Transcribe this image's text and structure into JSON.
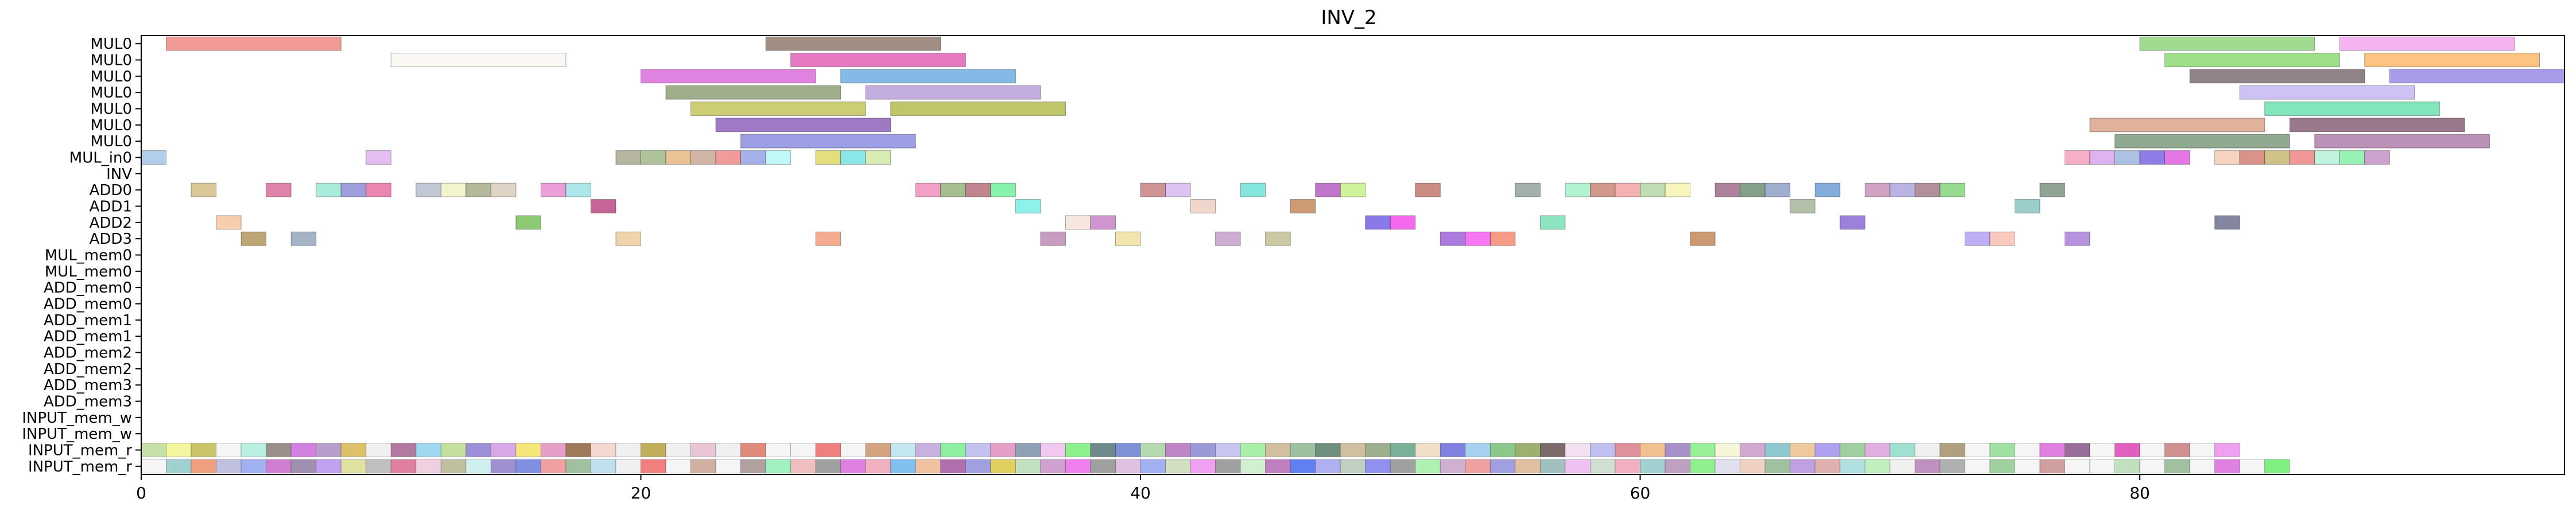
{
  "chart_data": {
    "type": "gantt",
    "title": "INV_2",
    "xlabel": "",
    "ylabel": "",
    "xlim": [
      0,
      97
    ],
    "xticks": [
      0,
      20,
      40,
      60,
      80
    ],
    "grid": false,
    "rows": [
      "MUL0",
      "MUL0",
      "MUL0",
      "MUL0",
      "MUL0",
      "MUL0",
      "MUL0",
      "MUL_in0",
      "INV",
      "ADD0",
      "ADD1",
      "ADD2",
      "ADD3",
      "MUL_mem0",
      "MUL_mem0",
      "ADD_mem0",
      "ADD_mem0",
      "ADD_mem1",
      "ADD_mem1",
      "ADD_mem2",
      "ADD_mem2",
      "ADD_mem3",
      "ADD_mem3",
      "INPUT_mem_w",
      "INPUT_mem_w",
      "INPUT_mem_r",
      "INPUT_mem_r"
    ],
    "tasks": [
      {
        "row": 0,
        "start": 1,
        "end": 8,
        "color": "#f08a84"
      },
      {
        "row": 0,
        "start": 25,
        "end": 32,
        "color": "#917a6c"
      },
      {
        "row": 0,
        "start": 80,
        "end": 87,
        "color": "#8ed67e"
      },
      {
        "row": 0,
        "start": 88,
        "end": 95,
        "color": "#f3a6ee"
      },
      {
        "row": 1,
        "start": 10,
        "end": 17,
        "color": "#faf7f2"
      },
      {
        "row": 1,
        "start": 26,
        "end": 33,
        "color": "#e063b9"
      },
      {
        "row": 1,
        "start": 81,
        "end": 88,
        "color": "#8bd973"
      },
      {
        "row": 1,
        "start": 89,
        "end": 96,
        "color": "#fdb96b"
      },
      {
        "row": 2,
        "start": 20,
        "end": 27,
        "color": "#db6ddb"
      },
      {
        "row": 2,
        "start": 28,
        "end": 35,
        "color": "#6eaee0"
      },
      {
        "row": 2,
        "start": 82,
        "end": 89,
        "color": "#7b6d72"
      },
      {
        "row": 2,
        "start": 90,
        "end": 97,
        "color": "#9a8ae6"
      },
      {
        "row": 3,
        "start": 21,
        "end": 28,
        "color": "#8f9f76"
      },
      {
        "row": 3,
        "start": 29,
        "end": 36,
        "color": "#b99fd9"
      },
      {
        "row": 3,
        "start": 84,
        "end": 91,
        "color": "#c4b7f1"
      },
      {
        "row": 4,
        "start": 22,
        "end": 29,
        "color": "#c4c45c"
      },
      {
        "row": 4,
        "start": 30,
        "end": 37,
        "color": "#b3bc4f"
      },
      {
        "row": 4,
        "start": 85,
        "end": 92,
        "color": "#6ce0b0"
      },
      {
        "row": 5,
        "start": 23,
        "end": 30,
        "color": "#8e62b8"
      },
      {
        "row": 5,
        "start": 78,
        "end": 85,
        "color": "#dba38a"
      },
      {
        "row": 5,
        "start": 86,
        "end": 93,
        "color": "#866075"
      },
      {
        "row": 6,
        "start": 24,
        "end": 31,
        "color": "#8c8ee0"
      },
      {
        "row": 6,
        "start": 79,
        "end": 86,
        "color": "#7d9a7c"
      },
      {
        "row": 6,
        "start": 87,
        "end": 94,
        "color": "#b07fad"
      },
      {
        "row": 7,
        "start": 0,
        "end": 1,
        "color": "#a6c5e8"
      },
      {
        "row": 7,
        "start": 9,
        "end": 10,
        "color": "#dfb3ef"
      },
      {
        "row": 7,
        "start": 19,
        "end": 20,
        "color": "#a9a88f"
      },
      {
        "row": 7,
        "start": 20,
        "end": 21,
        "color": "#a0b986"
      },
      {
        "row": 7,
        "start": 21,
        "end": 22,
        "color": "#e8b884"
      },
      {
        "row": 7,
        "start": 22,
        "end": 23,
        "color": "#c9a896"
      },
      {
        "row": 7,
        "start": 23,
        "end": 24,
        "color": "#f08a8a"
      },
      {
        "row": 7,
        "start": 24,
        "end": 25,
        "color": "#97a3e6"
      },
      {
        "row": 7,
        "start": 25,
        "end": 26,
        "color": "#b7f6f6"
      },
      {
        "row": 7,
        "start": 27,
        "end": 28,
        "color": "#e0d866"
      },
      {
        "row": 7,
        "start": 28,
        "end": 29,
        "color": "#77e2e6"
      },
      {
        "row": 7,
        "start": 29,
        "end": 30,
        "color": "#d1e8a6"
      },
      {
        "row": 7,
        "start": 77,
        "end": 78,
        "color": "#f4a1bd"
      },
      {
        "row": 7,
        "start": 78,
        "end": 79,
        "color": "#d8a6ef"
      },
      {
        "row": 7,
        "start": 79,
        "end": 80,
        "color": "#9fb6e0"
      },
      {
        "row": 7,
        "start": 80,
        "end": 81,
        "color": "#7a66e4"
      },
      {
        "row": 7,
        "start": 81,
        "end": 82,
        "color": "#e15ee0"
      },
      {
        "row": 7,
        "start": 83,
        "end": 84,
        "color": "#f6cdb4"
      },
      {
        "row": 7,
        "start": 84,
        "end": 85,
        "color": "#d47f74"
      },
      {
        "row": 7,
        "start": 85,
        "end": 86,
        "color": "#c8b975"
      },
      {
        "row": 7,
        "start": 86,
        "end": 87,
        "color": "#f08585"
      },
      {
        "row": 7,
        "start": 87,
        "end": 88,
        "color": "#b5f0d8"
      },
      {
        "row": 7,
        "start": 88,
        "end": 89,
        "color": "#86f0a8"
      },
      {
        "row": 7,
        "start": 89,
        "end": 90,
        "color": "#c592c6"
      },
      {
        "row": 9,
        "start": 2,
        "end": 3,
        "color": "#d4bd86"
      },
      {
        "row": 9,
        "start": 5,
        "end": 6,
        "color": "#d86f9b"
      },
      {
        "row": 9,
        "start": 7,
        "end": 8,
        "color": "#9ce8d6"
      },
      {
        "row": 9,
        "start": 8,
        "end": 9,
        "color": "#8d8ed6"
      },
      {
        "row": 9,
        "start": 9,
        "end": 10,
        "color": "#e871a6"
      },
      {
        "row": 9,
        "start": 11,
        "end": 12,
        "color": "#b9bed0"
      },
      {
        "row": 9,
        "start": 12,
        "end": 13,
        "color": "#f0f3c2"
      },
      {
        "row": 9,
        "start": 13,
        "end": 14,
        "color": "#a8ad8b"
      },
      {
        "row": 9,
        "start": 14,
        "end": 15,
        "color": "#d9ccbb"
      },
      {
        "row": 9,
        "start": 16,
        "end": 17,
        "color": "#e88ed2"
      },
      {
        "row": 9,
        "start": 17,
        "end": 18,
        "color": "#9ee3e8"
      },
      {
        "row": 9,
        "start": 31,
        "end": 32,
        "color": "#f08fbe"
      },
      {
        "row": 9,
        "start": 32,
        "end": 33,
        "color": "#95b57a"
      },
      {
        "row": 9,
        "start": 33,
        "end": 34,
        "color": "#b6707c"
      },
      {
        "row": 9,
        "start": 34,
        "end": 35,
        "color": "#72f09c"
      },
      {
        "row": 9,
        "start": 40,
        "end": 41,
        "color": "#c98181"
      },
      {
        "row": 9,
        "start": 41,
        "end": 42,
        "color": "#d7b9f0"
      },
      {
        "row": 9,
        "start": 44,
        "end": 45,
        "color": "#6ee0d6"
      },
      {
        "row": 9,
        "start": 47,
        "end": 48,
        "color": "#b45ec2"
      },
      {
        "row": 9,
        "start": 48,
        "end": 49,
        "color": "#c8f086"
      },
      {
        "row": 9,
        "start": 51,
        "end": 52,
        "color": "#c2786b"
      },
      {
        "row": 9,
        "start": 55,
        "end": 56,
        "color": "#93a39e"
      },
      {
        "row": 9,
        "start": 57,
        "end": 58,
        "color": "#a6f0c8"
      },
      {
        "row": 9,
        "start": 58,
        "end": 59,
        "color": "#c98778"
      },
      {
        "row": 9,
        "start": 59,
        "end": 60,
        "color": "#f3a3a3"
      },
      {
        "row": 9,
        "start": 60,
        "end": 61,
        "color": "#b5d6a6"
      },
      {
        "row": 9,
        "start": 61,
        "end": 62,
        "color": "#f6f2b0"
      },
      {
        "row": 9,
        "start": 63,
        "end": 64,
        "color": "#a06c8c"
      },
      {
        "row": 9,
        "start": 64,
        "end": 65,
        "color": "#6e8f73"
      },
      {
        "row": 9,
        "start": 65,
        "end": 66,
        "color": "#8e9fc6"
      },
      {
        "row": 9,
        "start": 67,
        "end": 68,
        "color": "#6e9fd6"
      },
      {
        "row": 9,
        "start": 69,
        "end": 70,
        "color": "#c592b5"
      },
      {
        "row": 9,
        "start": 70,
        "end": 71,
        "color": "#b0a6e0"
      },
      {
        "row": 9,
        "start": 71,
        "end": 72,
        "color": "#a57b8c"
      },
      {
        "row": 9,
        "start": 72,
        "end": 73,
        "color": "#83d67a"
      },
      {
        "row": 9,
        "start": 76,
        "end": 77,
        "color": "#7b9483"
      },
      {
        "row": 10,
        "start": 18,
        "end": 19,
        "color": "#b84b82"
      },
      {
        "row": 10,
        "start": 35,
        "end": 36,
        "color": "#7af0e6"
      },
      {
        "row": 10,
        "start": 42,
        "end": 43,
        "color": "#ecd0c4"
      },
      {
        "row": 10,
        "start": 46,
        "end": 47,
        "color": "#c48b5e"
      },
      {
        "row": 10,
        "start": 66,
        "end": 67,
        "color": "#a6b69b"
      },
      {
        "row": 10,
        "start": 75,
        "end": 76,
        "color": "#8ac5c2"
      },
      {
        "row": 11,
        "start": 3,
        "end": 4,
        "color": "#f6c6a0"
      },
      {
        "row": 11,
        "start": 15,
        "end": 16,
        "color": "#79c15c"
      },
      {
        "row": 11,
        "start": 37,
        "end": 38,
        "color": "#f4e3d9"
      },
      {
        "row": 11,
        "start": 38,
        "end": 39,
        "color": "#c883c6"
      },
      {
        "row": 11,
        "start": 49,
        "end": 50,
        "color": "#7661e4"
      },
      {
        "row": 11,
        "start": 50,
        "end": 51,
        "color": "#f24ee8"
      },
      {
        "row": 11,
        "start": 56,
        "end": 57,
        "color": "#77e0b5"
      },
      {
        "row": 11,
        "start": 68,
        "end": 69,
        "color": "#8a6ad8"
      },
      {
        "row": 11,
        "start": 83,
        "end": 84,
        "color": "#6e7190"
      },
      {
        "row": 12,
        "start": 4,
        "end": 5,
        "color": "#b0965a"
      },
      {
        "row": 12,
        "start": 6,
        "end": 7,
        "color": "#94a6bb"
      },
      {
        "row": 12,
        "start": 19,
        "end": 20,
        "color": "#edce9b"
      },
      {
        "row": 12,
        "start": 27,
        "end": 28,
        "color": "#f59e7d"
      },
      {
        "row": 12,
        "start": 36,
        "end": 37,
        "color": "#bd8bb5"
      },
      {
        "row": 12,
        "start": 39,
        "end": 40,
        "color": "#f0e0a0"
      },
      {
        "row": 12,
        "start": 43,
        "end": 44,
        "color": "#c49fcc"
      },
      {
        "row": 12,
        "start": 45,
        "end": 46,
        "color": "#c2bf92"
      },
      {
        "row": 12,
        "start": 52,
        "end": 53,
        "color": "#9e62d6"
      },
      {
        "row": 12,
        "start": 53,
        "end": 54,
        "color": "#f45ef2"
      },
      {
        "row": 12,
        "start": 54,
        "end": 55,
        "color": "#f48a70"
      },
      {
        "row": 12,
        "start": 62,
        "end": 63,
        "color": "#c4875a"
      },
      {
        "row": 12,
        "start": 73,
        "end": 74,
        "color": "#b3a0f2"
      },
      {
        "row": 12,
        "start": 74,
        "end": 75,
        "color": "#f8c0b4"
      },
      {
        "row": 12,
        "start": 77,
        "end": 78,
        "color": "#a97fd9"
      }
    ],
    "memory_rows": [
      {
        "row": 25,
        "colors": [
          "#c6e0a8",
          "#f4f6a0",
          "#c9c46a",
          "#f5f5f5",
          "#b9f0e0",
          "#9a8f8a",
          "#d280e0",
          "#b6a0cb",
          "#ddc06a",
          "#f0f0f0",
          "#b37aa0",
          "#9fd8f0",
          "#c4e0a0",
          "#9e90d8",
          "#d8a8e8",
          "#f5e67a",
          "#e6a0c8",
          "#9e7a5a",
          "#f5d8d0",
          "#f0f0f0",
          "#c0ae5c",
          "#f0f0f0",
          "#e8c6d6",
          "#f0f0f0",
          "#e08a7a",
          "#f5f5f5",
          "#f5f5f5",
          "#f08080",
          "#f5f5f5",
          "#d4a480",
          "#c4e6f0",
          "#c8b0e0",
          "#8cf0a0",
          "#c4c0f0",
          "#e6a0c8",
          "#8ea0b4",
          "#f0c8f0",
          "#8cf08c",
          "#6e8a8a",
          "#8090d8",
          "#b4d8b0",
          "#c085c6",
          "#9a9ad8",
          "#c8c6f0",
          "#a8f0a8",
          "#d0c0a0",
          "#9fc0a0",
          "#6e8e7e",
          "#d0c0a0",
          "#9cb090",
          "#7ab098",
          "#f0e0c8",
          "#8080e0",
          "#a8d0f0",
          "#8cc88c",
          "#9cb070",
          "#7a6a6a",
          "#f0e0f0",
          "#c0c0f0",
          "#e09098",
          "#f0c090",
          "#a890c8",
          "#98f098",
          "#f5f5d8",
          "#d0a8d0",
          "#90c8d0",
          "#f0c8a0",
          "#b0a0f0",
          "#a0d0a0",
          "#e0b0e0",
          "#a0e0d0",
          "#f0f0f0",
          "#b0a080",
          "#f5f5f5",
          "#a0e0a0",
          "#f5f5f5",
          "#e080e0",
          "#9a6e9a",
          "#f5f5f5",
          "#e060c0",
          "#f5f5f5",
          "#d09090",
          "#f5f5f5",
          "#f0a0f0"
        ]
      },
      {
        "row": 26,
        "colors": [
          "#f5f5f5",
          "#a0d0d0",
          "#f0a080",
          "#c0c0e0",
          "#a0b0f0",
          "#d07fd0",
          "#a090b0",
          "#c0a0f0",
          "#e0e0a0",
          "#c0c0c0",
          "#e080a0",
          "#f0d0e0",
          "#c0c0a0",
          "#d0f0f0",
          "#a090d0",
          "#8090e0",
          "#f0a0a0",
          "#a0c0a0",
          "#c0e0f0",
          "#f0f0f0",
          "#f08080",
          "#f5f5f5",
          "#d0b0a0",
          "#f5f5f5",
          "#b0a0a0",
          "#a0f0c0",
          "#f0c0c0",
          "#a0a0a0",
          "#e080e0",
          "#f0b0c0",
          "#80c0f0",
          "#f0c0a0",
          "#b070b0",
          "#a0a0e0",
          "#e0d060",
          "#c0e0c0",
          "#d0a0d0",
          "#f080f0",
          "#a0a0a0",
          "#e0c0e0",
          "#a0b0f0",
          "#d0e0c0",
          "#f0a0f0",
          "#a0a0a0",
          "#d0f0d0",
          "#c080c0",
          "#6080f0",
          "#b0b0f0",
          "#c0d0c0",
          "#9090f0",
          "#a0a0a0",
          "#b0f0b0",
          "#d0b0d0",
          "#f0a0a0",
          "#a0a0e0",
          "#e0c0a0",
          "#a0c0c0",
          "#f0c0f0",
          "#d0e0d0",
          "#f0b0c0",
          "#a0d0d0",
          "#c0a0c0",
          "#90f090",
          "#e0e0f0",
          "#f0d0c0",
          "#a0c0a0",
          "#c0a0e0",
          "#e0b0b0",
          "#b0e0e0",
          "#c0f0c0",
          "#f0f0f0",
          "#c090c0",
          "#b0b0b0",
          "#f5f5f5",
          "#a0d0a0",
          "#f5f5f5",
          "#d0a0a0",
          "#f5f5f5",
          "#f5f5f5",
          "#c0e0c0",
          "#f5f5f5",
          "#a0c0a0",
          "#f5f5f5",
          "#e080e0",
          "#f5f5f5",
          "#80f080"
        ]
      }
    ]
  }
}
